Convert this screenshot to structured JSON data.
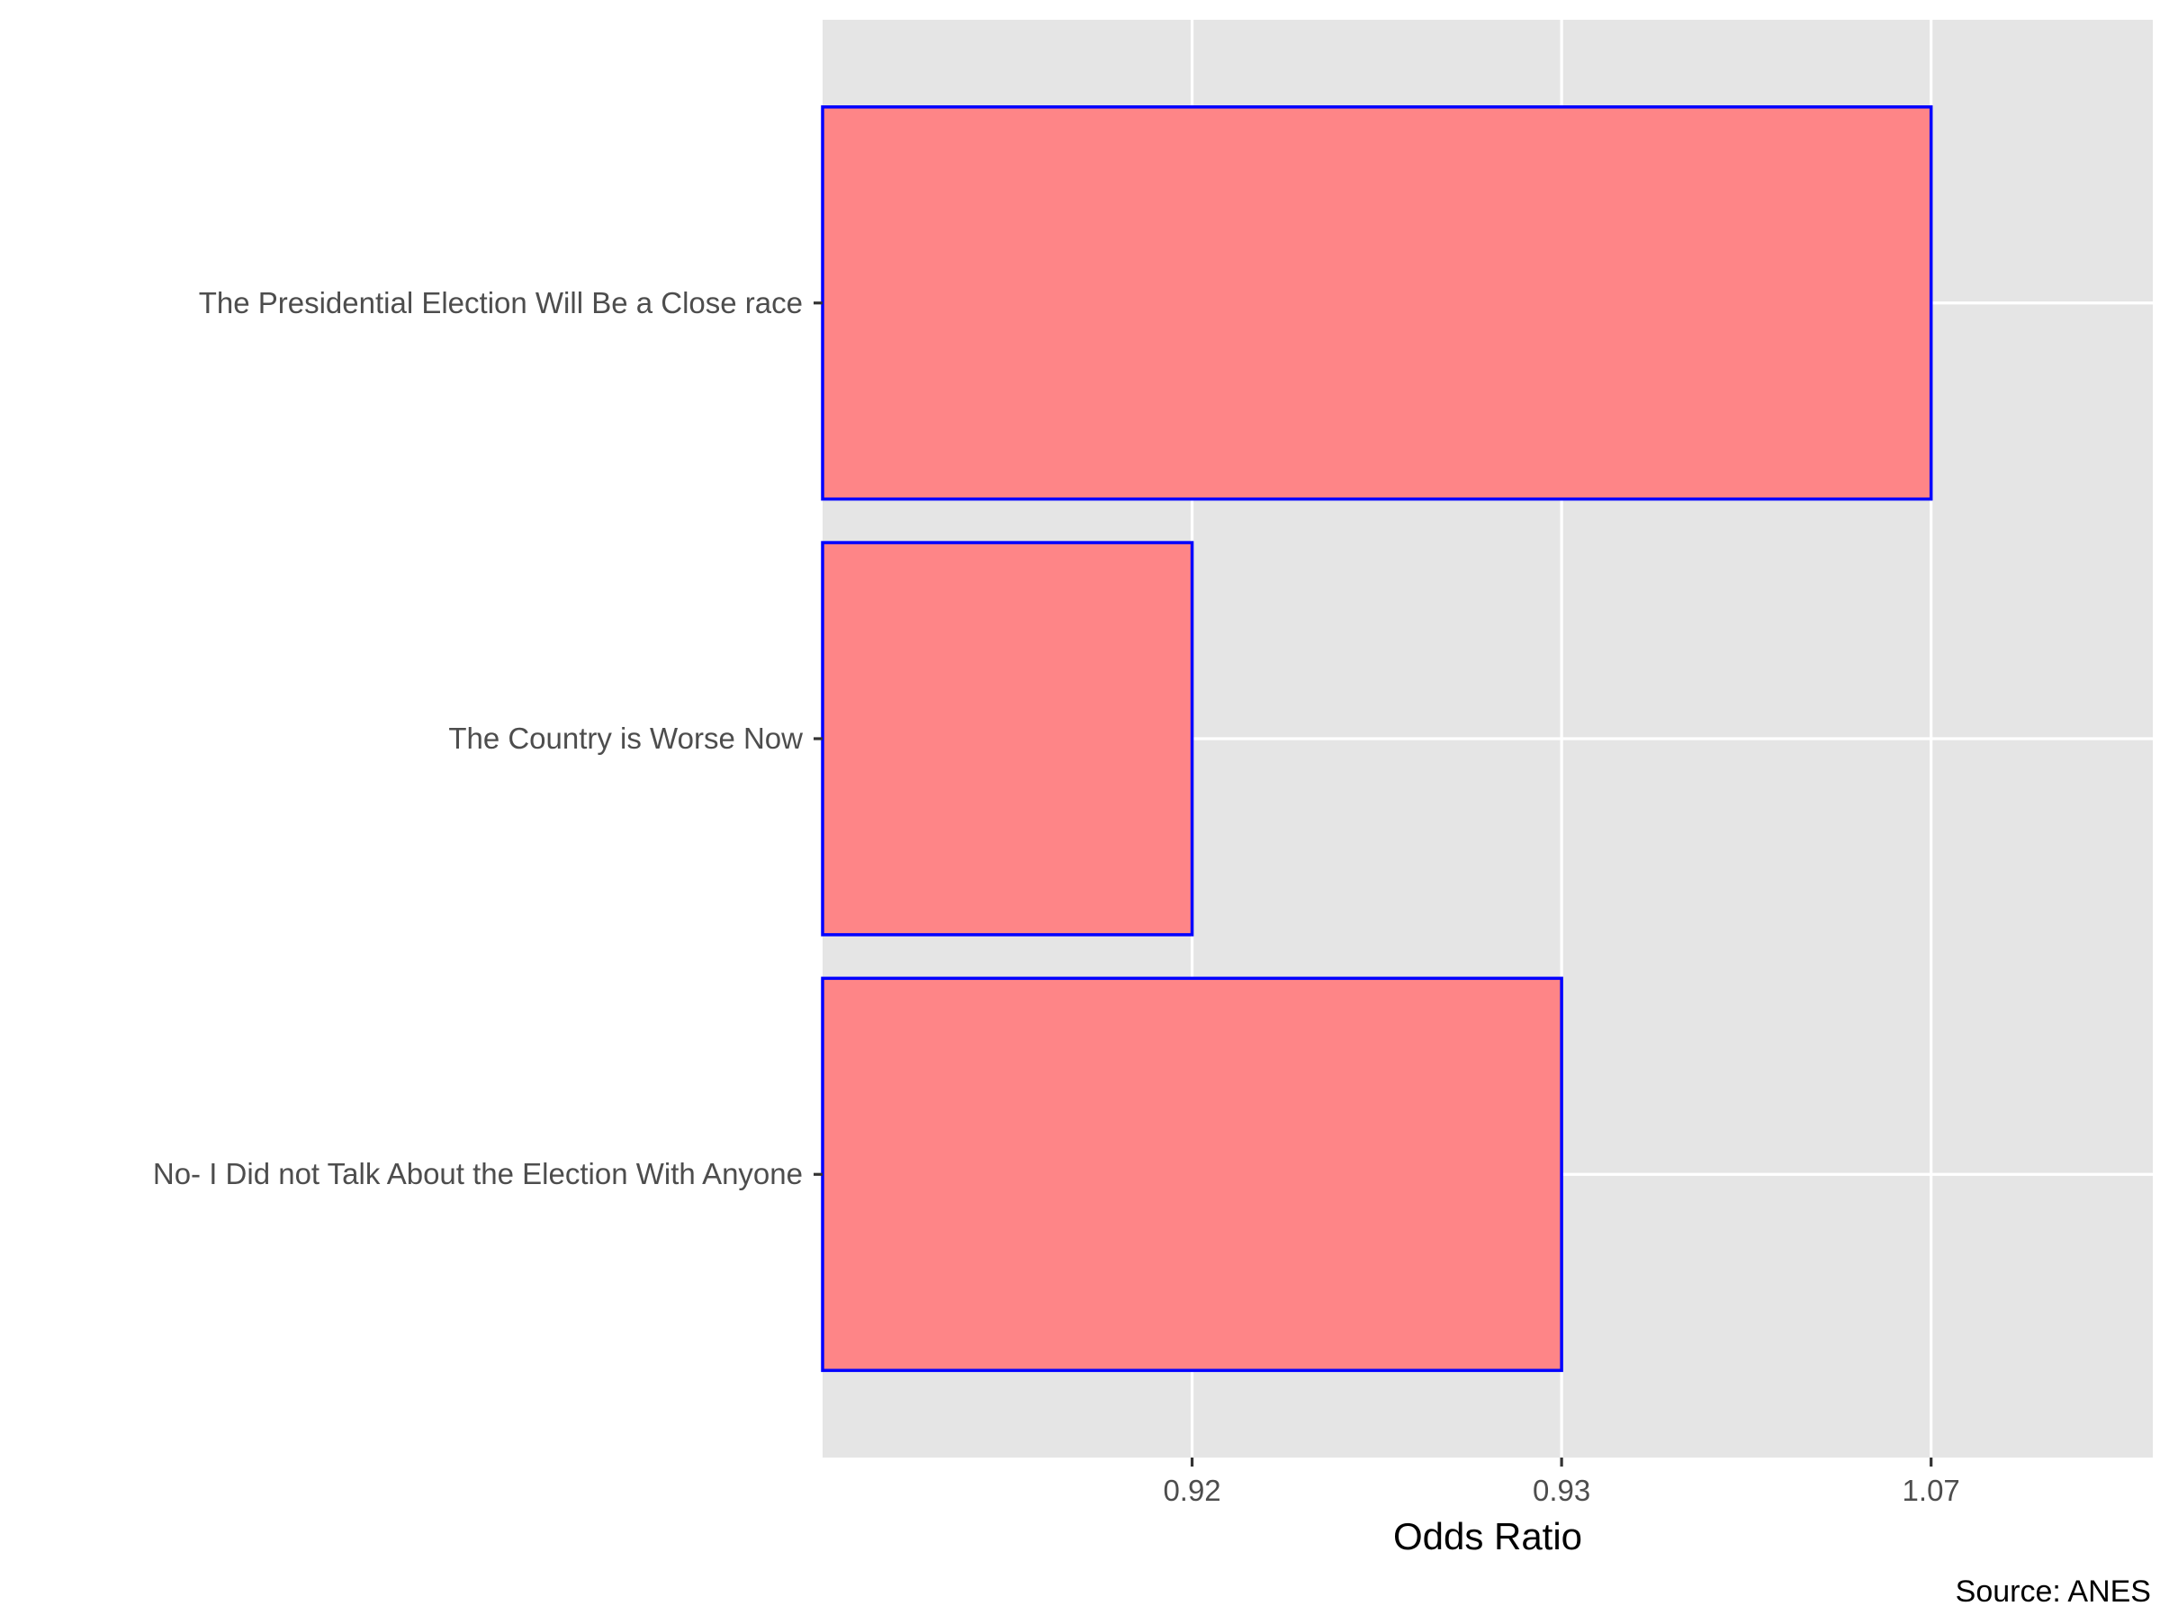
{
  "chart_data": {
    "type": "bar",
    "orientation": "horizontal",
    "categories": [
      "The Presidential Election Will Be a Close race",
      "The Country is Worse Now",
      "No- I Did not Talk About the Election With Anyone"
    ],
    "values": [
      1.07,
      0.92,
      0.93
    ],
    "value_labels": [
      "1.07",
      "0.92",
      "0.93"
    ],
    "xlabel": "Odds Ratio",
    "ylabel": "",
    "title": "",
    "caption": "Source: ANES",
    "x_axis": {
      "type": "categorical",
      "ticks": [
        "0.92",
        "0.93",
        "1.07"
      ]
    },
    "grid": true,
    "legend": "none",
    "colors": {
      "bar_fill": "#fe8587",
      "bar_outline": "#0000ff",
      "panel_background": "#e5e5e5",
      "grid_line": "#ffffff"
    }
  }
}
